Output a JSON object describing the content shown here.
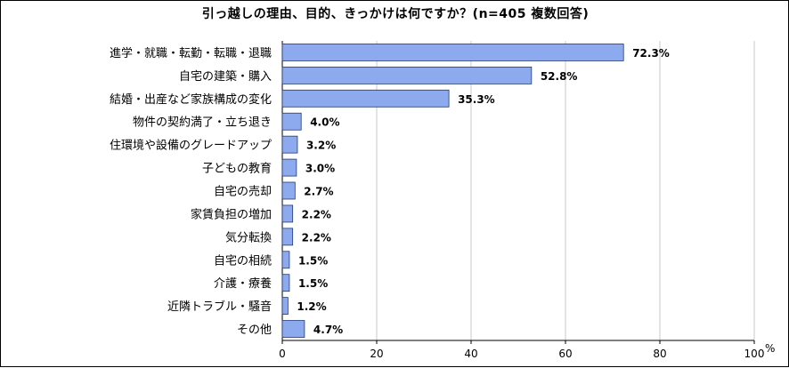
{
  "chart_data": {
    "type": "bar",
    "orientation": "horizontal",
    "title": "引っ越しの理由、目的、きっかけは何ですか？(n=405 複数回答)",
    "categories": [
      "進学・就職・転勤・転職・退職",
      "自宅の建築・購入",
      "結婚・出産など家族構成の変化",
      "物件の契約満了・立ち退き",
      "住環境や設備のグレードアップ",
      "子どもの教育",
      "自宅の売却",
      "家賃負担の増加",
      "気分転換",
      "自宅の相続",
      "介護・療養",
      "近隣トラブル・騒音",
      "その他"
    ],
    "values": [
      72.3,
      52.8,
      35.3,
      4.0,
      3.2,
      3.0,
      2.7,
      2.2,
      2.2,
      1.5,
      1.5,
      1.2,
      4.7
    ],
    "value_labels": [
      "72.3%",
      "52.8%",
      "35.3%",
      "4.0%",
      "3.2%",
      "3.0%",
      "2.7%",
      "2.2%",
      "2.2%",
      "1.5%",
      "1.5%",
      "1.2%",
      "4.7%"
    ],
    "xlim": [
      0,
      100
    ],
    "xticks": [
      0,
      20,
      40,
      60,
      80,
      100
    ],
    "xticks_labels": [
      "0",
      "20",
      "40",
      "60",
      "80",
      "100"
    ],
    "xunit": "%",
    "grid": true,
    "bar_color": "#8eaaee",
    "bar_edge_color": "#1f3a7a"
  }
}
